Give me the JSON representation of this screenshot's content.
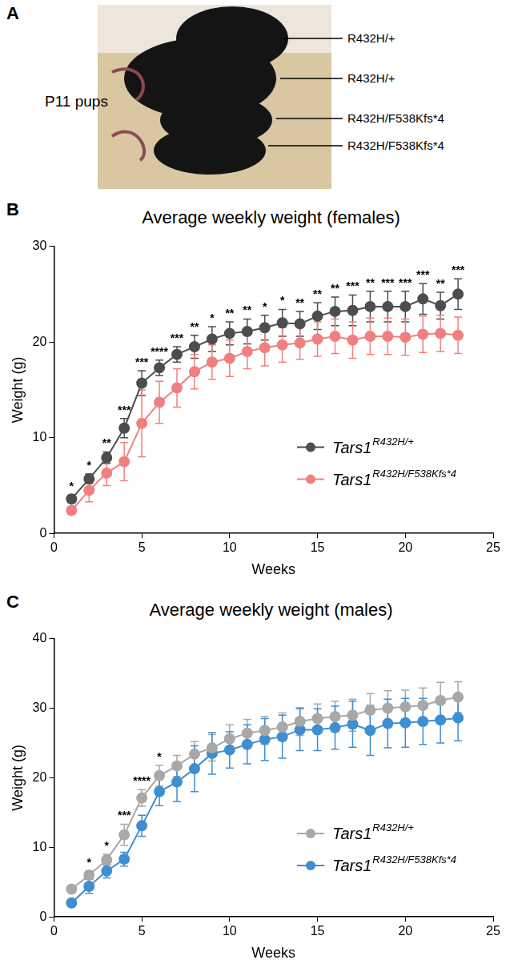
{
  "panel_a": {
    "panel": "A",
    "label": "P11 pups",
    "annotations": [
      "R432H/+",
      "R432H/+",
      "R432H/F538Kfs*4",
      "R432H/F538Kfs*4"
    ]
  },
  "chart_data": [
    {
      "panel": "B",
      "type": "line",
      "title": "Average weekly weight (females)",
      "x_label": "Weeks",
      "y_label": "Weight (g)",
      "x": [
        1,
        2,
        3,
        4,
        5,
        6,
        7,
        8,
        9,
        10,
        11,
        12,
        13,
        14,
        15,
        16,
        17,
        18,
        19,
        20,
        21,
        22,
        23
      ],
      "series": [
        {
          "name": "Tars1R432H/+",
          "color": "#4d4d4f",
          "values": [
            3.6,
            5.7,
            7.9,
            11.0,
            15.7,
            17.3,
            18.7,
            19.5,
            20.3,
            20.9,
            21.1,
            21.5,
            22.0,
            21.9,
            22.7,
            23.2,
            23.3,
            23.7,
            23.7,
            23.7,
            24.5,
            23.8,
            25.0
          ],
          "errors": [
            0.4,
            0.5,
            0.6,
            1.0,
            1.3,
            0.8,
            0.8,
            1.2,
            1.3,
            1.2,
            1.3,
            1.3,
            1.4,
            1.3,
            1.4,
            1.5,
            1.6,
            1.6,
            1.6,
            1.6,
            1.6,
            1.4,
            1.6
          ]
        },
        {
          "name": "Tars1R432H/F538Kfs*4",
          "color": "#f08080",
          "values": [
            2.4,
            4.5,
            6.3,
            7.5,
            11.5,
            13.7,
            15.2,
            16.9,
            17.9,
            18.3,
            19.0,
            19.4,
            19.7,
            19.9,
            20.3,
            20.6,
            20.2,
            20.6,
            20.6,
            20.5,
            20.8,
            20.9,
            20.7
          ],
          "errors": [
            0.4,
            1.2,
            1.3,
            2.0,
            3.5,
            2.2,
            2.0,
            1.8,
            1.8,
            1.9,
            1.8,
            1.9,
            1.8,
            1.7,
            1.8,
            1.8,
            1.9,
            1.9,
            1.9,
            1.9,
            1.9,
            1.9,
            1.9
          ]
        }
      ],
      "xlim": [
        0,
        25
      ],
      "xticks": [
        0,
        5,
        10,
        15,
        20,
        25
      ],
      "ylim": [
        0,
        30
      ],
      "yticks": [
        0,
        10,
        20,
        30
      ],
      "grid": false,
      "legend": "lower right",
      "marker": "circle",
      "line_style": "solid",
      "annotations": [
        {
          "x": 1,
          "text": "*"
        },
        {
          "x": 2,
          "text": "*"
        },
        {
          "x": 3,
          "text": "**"
        },
        {
          "x": 4,
          "text": "***"
        },
        {
          "x": 5,
          "text": "***"
        },
        {
          "x": 6,
          "text": "****"
        },
        {
          "x": 7,
          "text": "***"
        },
        {
          "x": 8,
          "text": "**"
        },
        {
          "x": 9,
          "text": "*"
        },
        {
          "x": 10,
          "text": "**"
        },
        {
          "x": 11,
          "text": "**"
        },
        {
          "x": 12,
          "text": "*"
        },
        {
          "x": 13,
          "text": "*"
        },
        {
          "x": 14,
          "text": "**"
        },
        {
          "x": 15,
          "text": "**"
        },
        {
          "x": 16,
          "text": "**"
        },
        {
          "x": 17,
          "text": "***"
        },
        {
          "x": 18,
          "text": "**"
        },
        {
          "x": 19,
          "text": "***"
        },
        {
          "x": 20,
          "text": "***"
        },
        {
          "x": 21,
          "text": "***"
        },
        {
          "x": 22,
          "text": "**"
        },
        {
          "x": 23,
          "text": "***"
        }
      ]
    },
    {
      "panel": "C",
      "type": "line",
      "title": "Average weekly weight (males)",
      "x_label": "Weeks",
      "y_label": "Weight (g)",
      "x": [
        1,
        2,
        3,
        4,
        5,
        6,
        7,
        8,
        9,
        10,
        11,
        12,
        13,
        14,
        15,
        16,
        17,
        18,
        19,
        20,
        21,
        22,
        23
      ],
      "series": [
        {
          "name": "Tars1R432H/+",
          "color": "#a8a8a8",
          "values": [
            4.0,
            6.0,
            8.2,
            11.8,
            17.1,
            20.3,
            21.7,
            23.4,
            24.3,
            25.6,
            26.4,
            26.8,
            27.3,
            28.1,
            28.5,
            28.8,
            29.0,
            29.7,
            30.0,
            30.2,
            30.4,
            31.1,
            31.6
          ],
          "errors": [
            0.4,
            0.6,
            0.8,
            1.5,
            1.2,
            1.5,
            1.5,
            1.8,
            1.9,
            2.0,
            2.0,
            2.0,
            2.0,
            2.0,
            2.1,
            2.2,
            2.3,
            2.4,
            2.5,
            2.4,
            2.5,
            2.6,
            2.2
          ]
        },
        {
          "name": "Tars1R432H/F538Kfs*4",
          "color": "#3d8fd1",
          "values": [
            2.0,
            4.4,
            6.6,
            8.3,
            13.1,
            18.0,
            19.4,
            21.3,
            23.5,
            24.0,
            24.8,
            25.5,
            25.9,
            26.9,
            26.9,
            27.2,
            27.7,
            26.8,
            27.8,
            27.9,
            28.1,
            28.3,
            28.6
          ],
          "errors": [
            0.3,
            1.0,
            1.0,
            1.0,
            1.5,
            2.0,
            2.8,
            3.3,
            3.0,
            2.6,
            2.8,
            3.0,
            3.1,
            3.0,
            3.0,
            3.1,
            3.3,
            3.6,
            3.5,
            3.5,
            3.3,
            3.3,
            3.3
          ]
        }
      ],
      "xlim": [
        0,
        25
      ],
      "xticks": [
        0,
        5,
        10,
        15,
        20,
        25
      ],
      "ylim": [
        0,
        40
      ],
      "yticks": [
        0,
        10,
        20,
        30,
        40
      ],
      "grid": false,
      "legend": "lower right",
      "marker": "circle",
      "line_style": "solid",
      "annotations": [
        {
          "x": 2,
          "text": "*"
        },
        {
          "x": 3,
          "text": "*"
        },
        {
          "x": 4,
          "text": "***"
        },
        {
          "x": 5,
          "text": "****"
        },
        {
          "x": 6,
          "text": "*"
        }
      ]
    }
  ]
}
